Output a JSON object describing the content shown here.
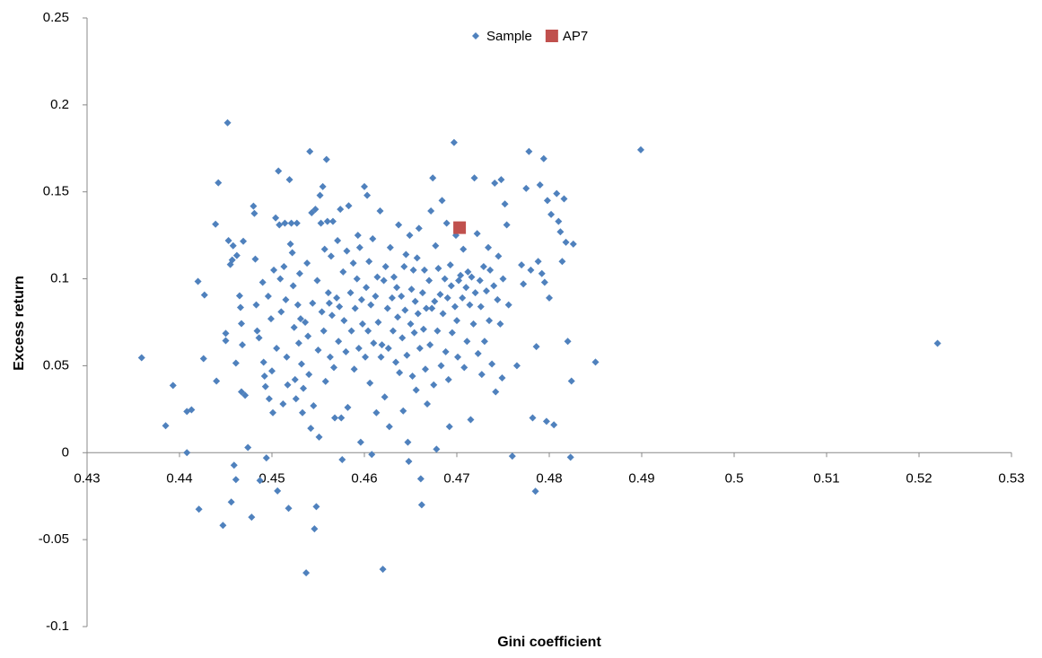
{
  "chart_data": {
    "type": "scatter",
    "xlabel": "Gini coefficient",
    "ylabel": "Excess return",
    "xlim": [
      0.43,
      0.53
    ],
    "xticks": [
      0.43,
      0.44,
      0.45,
      0.46,
      0.47,
      0.48,
      0.49,
      0.5,
      0.51,
      0.52,
      0.53
    ],
    "ylim": [
      -0.1,
      0.25
    ],
    "yticks": [
      -0.1,
      -0.05,
      0,
      0.05,
      0.1,
      0.15,
      0.2,
      0.25
    ],
    "legend": "top",
    "series": [
      {
        "name": "Sample",
        "color": "#4f81bd",
        "marker": "diamond",
        "x": [
          0.4359,
          0.4385,
          0.4393,
          0.4408,
          0.4413,
          0.4408,
          0.4421,
          0.442,
          0.4427,
          0.4426,
          0.4439,
          0.4442,
          0.444,
          0.4447,
          0.445,
          0.445,
          0.4452,
          0.4453,
          0.4458,
          0.4462,
          0.4457,
          0.4455,
          0.4456,
          0.4459,
          0.4461,
          0.4461,
          0.4465,
          0.4466,
          0.4467,
          0.4468,
          0.4469,
          0.4467,
          0.4471,
          0.4474,
          0.4478,
          0.448,
          0.4481,
          0.4482,
          0.4483,
          0.4484,
          0.4486,
          0.4487,
          0.449,
          0.4491,
          0.4492,
          0.4493,
          0.4494,
          0.4496,
          0.4497,
          0.4499,
          0.45,
          0.4501,
          0.4502,
          0.4504,
          0.4505,
          0.4506,
          0.4507,
          0.4508,
          0.4509,
          0.451,
          0.4512,
          0.4513,
          0.4514,
          0.4515,
          0.4516,
          0.4517,
          0.4518,
          0.4519,
          0.452,
          0.4521,
          0.4522,
          0.4523,
          0.4524,
          0.4525,
          0.4526,
          0.4527,
          0.4528,
          0.4529,
          0.453,
          0.4531,
          0.4532,
          0.4533,
          0.4534,
          0.4536,
          0.4537,
          0.4538,
          0.4539,
          0.454,
          0.4541,
          0.4542,
          0.4543,
          0.4544,
          0.4545,
          0.4546,
          0.4547,
          0.4548,
          0.4549,
          0.455,
          0.4551,
          0.4552,
          0.4553,
          0.4554,
          0.4555,
          0.4556,
          0.4557,
          0.4558,
          0.4559,
          0.456,
          0.4561,
          0.4562,
          0.4563,
          0.4564,
          0.4565,
          0.4566,
          0.4567,
          0.4568,
          0.457,
          0.4571,
          0.4572,
          0.4573,
          0.4574,
          0.4575,
          0.4576,
          0.4577,
          0.4578,
          0.458,
          0.4581,
          0.4582,
          0.4583,
          0.4585,
          0.4586,
          0.4588,
          0.4589,
          0.459,
          0.4592,
          0.4593,
          0.4594,
          0.4595,
          0.4596,
          0.4597,
          0.4598,
          0.46,
          0.4601,
          0.4602,
          0.4603,
          0.4604,
          0.4605,
          0.4606,
          0.4607,
          0.4608,
          0.4609,
          0.461,
          0.4612,
          0.4613,
          0.4614,
          0.4615,
          0.4617,
          0.4618,
          0.4619,
          0.462,
          0.4621,
          0.4622,
          0.4623,
          0.4625,
          0.4626,
          0.4627,
          0.4628,
          0.463,
          0.4631,
          0.4632,
          0.4634,
          0.4635,
          0.4636,
          0.4637,
          0.4638,
          0.464,
          0.4641,
          0.4642,
          0.4643,
          0.4644,
          0.4645,
          0.4646,
          0.4647,
          0.4648,
          0.4649,
          0.465,
          0.4651,
          0.4652,
          0.4653,
          0.4654,
          0.4655,
          0.4656,
          0.4657,
          0.4658,
          0.4659,
          0.466,
          0.4661,
          0.4662,
          0.4663,
          0.4664,
          0.4665,
          0.4666,
          0.4667,
          0.4668,
          0.467,
          0.4671,
          0.4672,
          0.4673,
          0.4674,
          0.4675,
          0.4676,
          0.4677,
          0.4678,
          0.4679,
          0.468,
          0.4682,
          0.4683,
          0.4684,
          0.4685,
          0.4687,
          0.4688,
          0.4689,
          0.469,
          0.4691,
          0.4692,
          0.4693,
          0.4694,
          0.4695,
          0.4697,
          0.4698,
          0.4699,
          0.47,
          0.4701,
          0.4702,
          0.4704,
          0.4706,
          0.4707,
          0.4708,
          0.471,
          0.4711,
          0.4712,
          0.4714,
          0.4715,
          0.4716,
          0.4718,
          0.4719,
          0.472,
          0.4722,
          0.4723,
          0.4725,
          0.4726,
          0.4727,
          0.4729,
          0.473,
          0.4732,
          0.4734,
          0.4735,
          0.4736,
          0.4738,
          0.474,
          0.4741,
          0.4742,
          0.4744,
          0.4745,
          0.4747,
          0.4748,
          0.4749,
          0.475,
          0.4752,
          0.4754,
          0.4756,
          0.476,
          0.4765,
          0.477,
          0.4772,
          0.4775,
          0.4778,
          0.478,
          0.4782,
          0.4785,
          0.4786,
          0.4788,
          0.479,
          0.4792,
          0.4794,
          0.4795,
          0.4797,
          0.4798,
          0.48,
          0.4802,
          0.4805,
          0.4808,
          0.481,
          0.4812,
          0.4814,
          0.4816,
          0.4818,
          0.482,
          0.4823,
          0.4824,
          0.4826,
          0.485,
          0.4899,
          0.522
        ],
        "values": [
          0.0546,
          0.0155,
          0.0387,
          0.0237,
          0.0247,
          0.0,
          -0.0325,
          0.0985,
          0.0907,
          0.0541,
          0.1314,
          0.1552,
          0.0412,
          -0.0418,
          0.0686,
          0.0644,
          0.1897,
          0.122,
          0.119,
          0.1134,
          0.1108,
          0.1082,
          -0.0284,
          -0.0072,
          -0.0155,
          0.0515,
          0.0902,
          0.0835,
          0.0742,
          0.062,
          0.1216,
          0.035,
          0.033,
          0.003,
          -0.0371,
          0.1418,
          0.1376,
          0.1113,
          0.085,
          0.07,
          0.066,
          -0.016,
          0.098,
          0.052,
          0.044,
          0.038,
          -0.003,
          0.09,
          0.031,
          0.077,
          0.047,
          0.023,
          0.105,
          0.135,
          0.06,
          -0.022,
          0.162,
          0.131,
          0.1,
          0.081,
          0.028,
          0.107,
          0.132,
          0.088,
          0.055,
          0.039,
          -0.032,
          0.157,
          0.12,
          0.132,
          0.115,
          0.096,
          0.072,
          0.042,
          0.031,
          0.132,
          0.085,
          0.063,
          0.103,
          0.077,
          0.051,
          0.023,
          0.037,
          0.075,
          -0.0691,
          0.109,
          0.067,
          0.045,
          0.1732,
          0.014,
          0.138,
          0.086,
          0.027,
          -0.0438,
          0.14,
          -0.031,
          0.099,
          0.059,
          0.009,
          0.148,
          0.132,
          0.081,
          0.153,
          0.07,
          0.117,
          0.041,
          0.1686,
          0.133,
          0.092,
          0.086,
          0.055,
          0.113,
          0.079,
          0.133,
          0.049,
          0.02,
          0.089,
          0.122,
          0.064,
          0.084,
          0.14,
          0.02,
          -0.004,
          0.104,
          0.076,
          0.058,
          0.116,
          0.026,
          0.142,
          0.092,
          0.07,
          0.109,
          0.048,
          0.083,
          0.1,
          0.125,
          0.06,
          0.118,
          0.006,
          0.088,
          0.074,
          0.153,
          0.055,
          0.095,
          0.148,
          0.07,
          0.11,
          0.04,
          0.085,
          -0.001,
          0.123,
          0.063,
          0.09,
          0.023,
          0.101,
          0.075,
          0.139,
          0.055,
          0.062,
          -0.067,
          0.099,
          0.032,
          0.107,
          0.083,
          0.06,
          0.015,
          0.118,
          0.089,
          0.07,
          0.101,
          0.052,
          0.095,
          0.078,
          0.131,
          0.046,
          0.09,
          0.066,
          0.024,
          0.107,
          0.082,
          0.114,
          0.056,
          0.006,
          -0.005,
          0.125,
          0.074,
          0.094,
          0.044,
          0.105,
          0.069,
          0.087,
          0.036,
          0.112,
          0.08,
          0.129,
          0.06,
          -0.015,
          -0.03,
          0.092,
          0.071,
          0.105,
          0.048,
          0.083,
          0.028,
          0.099,
          0.062,
          0.139,
          0.083,
          0.158,
          0.039,
          0.087,
          0.119,
          0.002,
          0.07,
          0.106,
          0.091,
          0.05,
          0.145,
          0.08,
          0.1,
          0.058,
          0.132,
          0.089,
          0.042,
          0.015,
          0.108,
          0.096,
          0.069,
          0.1784,
          0.084,
          0.125,
          0.076,
          0.055,
          0.099,
          0.102,
          0.089,
          0.117,
          0.049,
          0.095,
          0.064,
          0.104,
          0.085,
          0.019,
          0.101,
          0.074,
          0.158,
          0.092,
          0.126,
          0.057,
          0.099,
          0.084,
          0.045,
          0.107,
          0.064,
          0.093,
          0.118,
          0.076,
          0.105,
          0.051,
          0.096,
          0.155,
          0.035,
          0.088,
          0.113,
          0.074,
          0.157,
          0.043,
          0.1,
          0.143,
          0.131,
          0.085,
          -0.002,
          0.05,
          0.108,
          0.097,
          0.152,
          0.1732,
          0.105,
          0.02,
          -0.0222,
          0.061,
          0.11,
          0.154,
          0.103,
          0.1691,
          0.098,
          0.018,
          0.145,
          0.089,
          0.137,
          0.016,
          0.149,
          0.133,
          0.127,
          0.11,
          0.146,
          0.121,
          0.064,
          -0.0026,
          0.0412,
          0.12,
          0.0521,
          0.1742,
          0.0629
        ]
      },
      {
        "name": "AP7",
        "color": "#c0504d",
        "marker": "square",
        "x": [
          0.4703
        ],
        "values": [
          0.1294
        ]
      }
    ]
  }
}
